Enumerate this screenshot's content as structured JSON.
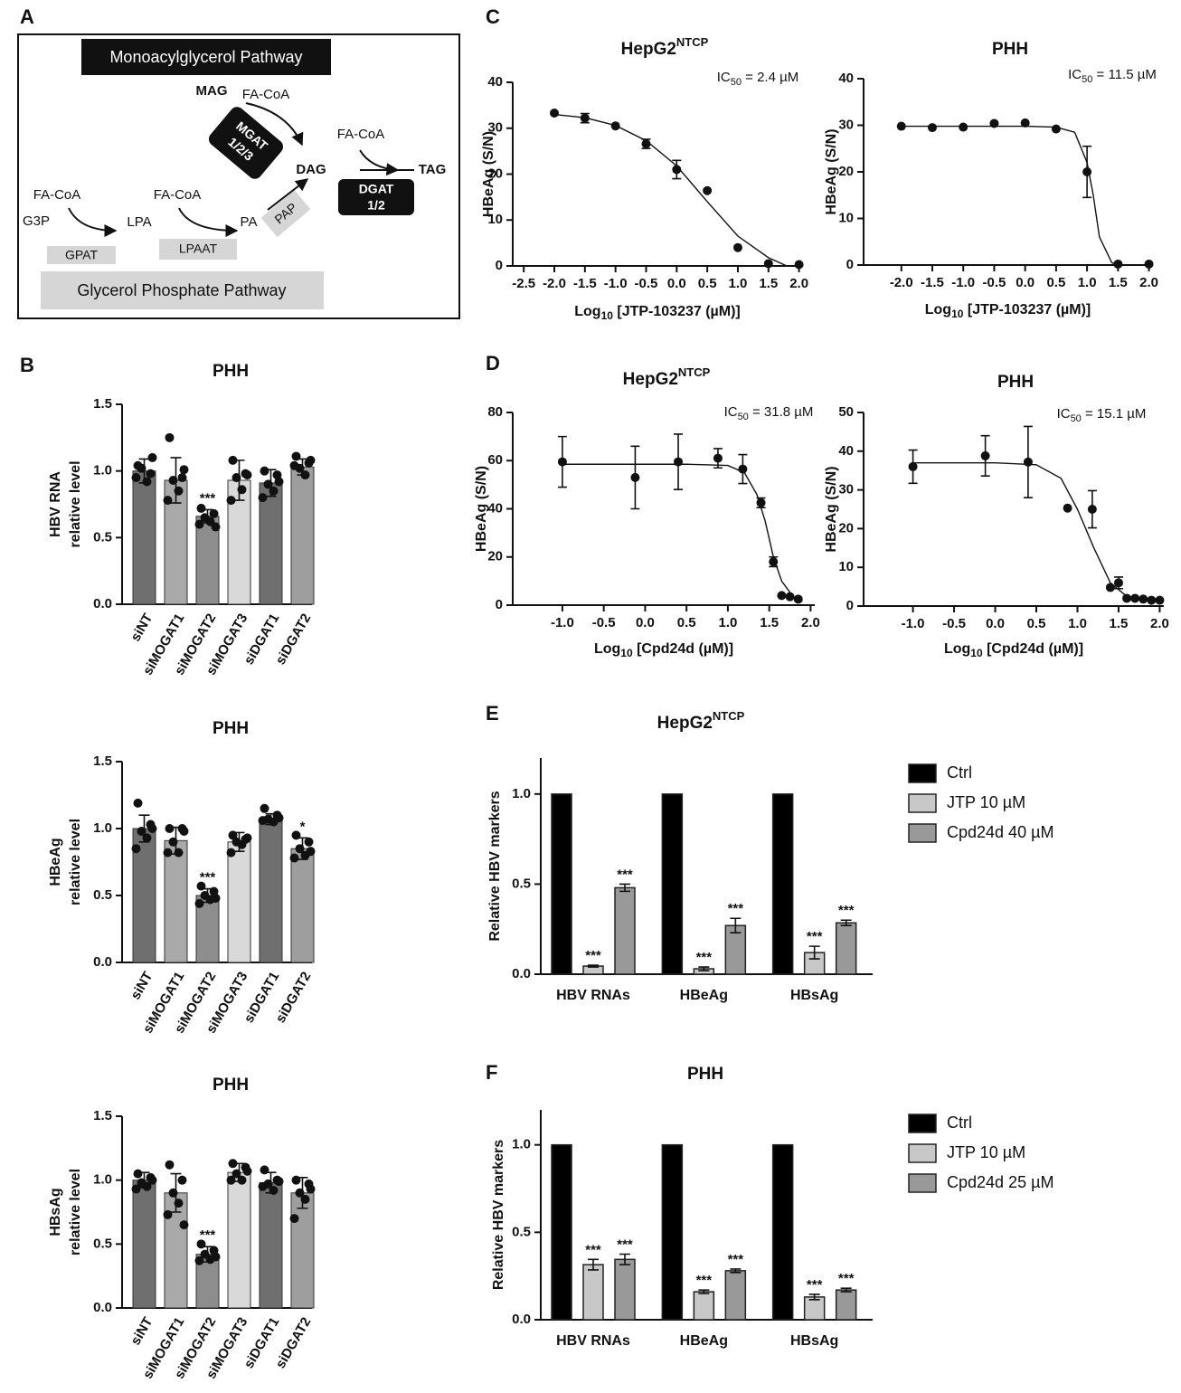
{
  "panel_labels": [
    "A",
    "B",
    "C",
    "D",
    "E",
    "F"
  ],
  "diagram": {
    "top_title": "Monoacylglycerol Pathway",
    "bottom_title": "Glycerol Phosphate Pathway",
    "mag": "MAG",
    "dag": "DAG",
    "tag": "TAG",
    "g3p": "G3P",
    "lpa": "LPA",
    "pa": "PA",
    "fa_coa": [
      "FA-CoA",
      "FA-CoA",
      "FA-CoA",
      "FA-CoA"
    ],
    "mgat": [
      "MGAT",
      "1/2/3"
    ],
    "dgat": [
      "DGAT",
      "1/2"
    ],
    "pap": "PAP",
    "gpat": "GPAT",
    "lpaat": "LPAAT"
  },
  "chart_data": [
    {
      "type": "bar",
      "title": "PHH",
      "ylabel": [
        "HBV RNA",
        "relative level"
      ],
      "categories": [
        "siNT",
        "siMOGAT1",
        "siMOGAT2",
        "siMOGAT3",
        "siDGAT1",
        "siDGAT2"
      ],
      "values": [
        1.0,
        0.93,
        0.66,
        0.93,
        0.91,
        1.03
      ],
      "errors": [
        0.09,
        0.17,
        0.05,
        0.15,
        0.1,
        0.06
      ],
      "points": [
        [
          1.04,
          0.98,
          1.02,
          0.92,
          0.95,
          1.1
        ],
        [
          1.25,
          0.95,
          0.93,
          0.85,
          0.78,
          1.01
        ],
        [
          0.72,
          0.68,
          0.65,
          0.62,
          0.6,
          0.58
        ],
        [
          1.08,
          0.98,
          0.95,
          0.86,
          0.78,
          0.97
        ],
        [
          1.0,
          0.97,
          0.9,
          0.85,
          0.8,
          0.92
        ],
        [
          1.11,
          1.06,
          1.02,
          0.97,
          1.04,
          1.08
        ]
      ],
      "significance": [
        null,
        null,
        "***",
        null,
        null,
        null
      ],
      "colors": [
        "#6f6f6f",
        "#a9a9a9",
        "#8d8d8d",
        "#d9d9d9",
        "#6f6f6f",
        "#9e9e9e"
      ],
      "ylim": [
        0,
        1.5
      ],
      "yticks": [
        {
          "value": 0,
          "label": "0.0"
        },
        0.5,
        {
          "value": 1,
          "label": "1.0"
        },
        1.5
      ]
    },
    {
      "type": "bar",
      "title": "PHH",
      "ylabel": [
        "HBeAg",
        "relative level"
      ],
      "categories": [
        "siNT",
        "siMOGAT1",
        "siMOGAT2",
        "siMOGAT3",
        "siDGAT1",
        "siDGAT2"
      ],
      "values": [
        1.0,
        0.91,
        0.5,
        0.9,
        1.07,
        0.85
      ],
      "errors": [
        0.1,
        0.1,
        0.05,
        0.07,
        0.04,
        0.08
      ],
      "points": [
        [
          1.19,
          1.03,
          0.98,
          0.93,
          0.85,
          1.0
        ],
        [
          1.0,
          1.0,
          0.9,
          0.82,
          0.82,
          0.98
        ],
        [
          0.57,
          0.53,
          0.5,
          0.47,
          0.44,
          0.48
        ],
        [
          0.95,
          0.92,
          0.9,
          0.88,
          0.82,
          0.93
        ],
        [
          1.15,
          1.1,
          1.07,
          1.05,
          1.06,
          1.08
        ],
        [
          0.95,
          0.9,
          0.85,
          0.8,
          0.78,
          0.83
        ]
      ],
      "significance": [
        null,
        null,
        "***",
        null,
        null,
        "*"
      ],
      "colors": [
        "#6f6f6f",
        "#a9a9a9",
        "#8d8d8d",
        "#d9d9d9",
        "#6f6f6f",
        "#9e9e9e"
      ],
      "ylim": [
        0,
        1.5
      ],
      "yticks": [
        {
          "value": 0,
          "label": "0.0"
        },
        0.5,
        {
          "value": 1,
          "label": "1.0"
        },
        1.5
      ]
    },
    {
      "type": "bar",
      "title": "PHH",
      "ylabel": [
        "HBsAg",
        "relative level"
      ],
      "categories": [
        "siNT",
        "siMOGAT1",
        "siMOGAT2",
        "siMOGAT3",
        "siDGAT1",
        "siDGAT2"
      ],
      "values": [
        1.0,
        0.9,
        0.42,
        1.06,
        0.98,
        0.9
      ],
      "errors": [
        0.06,
        0.15,
        0.06,
        0.07,
        0.08,
        0.12
      ],
      "points": [
        [
          1.05,
          1.02,
          0.98,
          0.95,
          0.93,
          1.0
        ],
        [
          1.12,
          1.0,
          0.9,
          0.82,
          0.73,
          0.65
        ],
        [
          0.5,
          0.45,
          0.42,
          0.38,
          0.37,
          0.4
        ],
        [
          1.13,
          1.1,
          1.05,
          1.0,
          1.0,
          1.07
        ],
        [
          1.08,
          1.0,
          0.97,
          0.92,
          0.95,
          0.99
        ],
        [
          1.0,
          0.97,
          0.9,
          0.85,
          0.7,
          0.93
        ]
      ],
      "significance": [
        null,
        null,
        "***",
        null,
        null,
        null
      ],
      "colors": [
        "#6f6f6f",
        "#a9a9a9",
        "#8d8d8d",
        "#d9d9d9",
        "#6f6f6f",
        "#9e9e9e"
      ],
      "ylim": [
        0,
        1.5
      ],
      "yticks": [
        {
          "value": 0,
          "label": "0.0"
        },
        0.5,
        {
          "value": 1,
          "label": "1.0"
        },
        1.5
      ]
    },
    {
      "type": "scatter",
      "title": "HepG2",
      "title_sup": "NTCP",
      "annotation": {
        "text": "IC",
        "sub": "50",
        "rest": " = 2.4 µM"
      },
      "xlabel": {
        "text": "Log",
        "sub": "10",
        "rest": " [JTP-103237 (µM)]"
      },
      "ylabel": "HBeAg (S/N)",
      "x": [
        -2,
        -1.5,
        -1,
        -0.5,
        0,
        0.5,
        1,
        1.5,
        2
      ],
      "y": [
        33.3,
        32.2,
        30.5,
        26.6,
        21,
        16.4,
        4,
        0.5,
        0.3
      ],
      "err": [
        null,
        1,
        null,
        1,
        2,
        null,
        null,
        null,
        null
      ],
      "fit_x": [
        -2,
        -1.5,
        -1,
        -0.5,
        0,
        0.5,
        1,
        1.5,
        1.8
      ],
      "fit_y": [
        33,
        32.3,
        30.6,
        27.3,
        21.8,
        14,
        6.5,
        1.8,
        0
      ],
      "xlim": [
        -2.68,
        2.05
      ],
      "xticks": [
        -2.5,
        {
          "value": -2,
          "label": "-2.0"
        },
        -1.5,
        {
          "value": -1,
          "label": "-1.0"
        },
        -0.5,
        {
          "value": 0,
          "label": "0.0"
        },
        0.5,
        {
          "value": 1,
          "label": "1.0"
        },
        1.5,
        {
          "value": 2,
          "label": "2.0"
        }
      ],
      "ylim": [
        0,
        40
      ],
      "yticks": [
        0,
        10,
        20,
        30,
        40
      ]
    },
    {
      "type": "scatter",
      "title": "PHH",
      "annotation": {
        "text": "IC",
        "sub": "50",
        "rest": " = 11.5 µM"
      },
      "xlabel": {
        "text": "Log",
        "sub": "10",
        "rest": " [JTP-103237 (µM)]"
      },
      "ylabel": "HBeAg (S/N)",
      "x": [
        -2,
        -1.5,
        -1,
        -0.5,
        0,
        0.5,
        1,
        1.5,
        2
      ],
      "y": [
        29.8,
        29.5,
        29.6,
        30.4,
        30.5,
        29.2,
        20,
        0.2,
        0.2
      ],
      "err": [
        null,
        null,
        null,
        null,
        null,
        null,
        5.5,
        null,
        null
      ],
      "fit_x": [
        -2,
        -1,
        0,
        0.5,
        0.8,
        1,
        1.1,
        1.2,
        1.4,
        1.5
      ],
      "fit_y": [
        29.8,
        29.8,
        29.8,
        29.6,
        28.5,
        22,
        15,
        6,
        0.5,
        0
      ],
      "xlim": [
        -2.61,
        2.05
      ],
      "xticks": [
        {
          "value": -2,
          "label": "-2.0"
        },
        -1.5,
        {
          "value": -1,
          "label": "-1.0"
        },
        -0.5,
        {
          "value": 0,
          "label": "0.0"
        },
        0.5,
        {
          "value": 1,
          "label": "1.0"
        },
        1.5,
        {
          "value": 2,
          "label": "2.0"
        }
      ],
      "ylim": [
        0,
        40
      ],
      "yticks": [
        0,
        10,
        20,
        30,
        40
      ]
    },
    {
      "type": "scatter",
      "title": "HepG2",
      "title_sup": "NTCP",
      "annotation": {
        "text": "IC",
        "sub": "50",
        "rest": " = 31.8 µM"
      },
      "xlabel": {
        "text": "Log",
        "sub": "10",
        "rest": " [Cpd24d (µM)]"
      },
      "ylabel": "HBeAg (S/N)",
      "x": [
        -1,
        -0.12,
        0.4,
        0.88,
        1.18,
        1.4,
        1.55,
        1.65,
        1.75,
        1.85
      ],
      "y": [
        59.5,
        53,
        59.5,
        61,
        56.5,
        42.5,
        18,
        4,
        3.5,
        2.5
      ],
      "err": [
        10.5,
        13,
        11.5,
        4,
        6,
        2,
        2,
        null,
        null,
        null
      ],
      "fit_x": [
        -1,
        0,
        0.5,
        1,
        1.2,
        1.35,
        1.45,
        1.55,
        1.65,
        1.8,
        1.9
      ],
      "fit_y": [
        58.5,
        58.5,
        58.5,
        58,
        55,
        46,
        35,
        20,
        10,
        3,
        1.5
      ],
      "xlim": [
        -1.6,
        2.05
      ],
      "xticks": [
        {
          "value": -1,
          "label": "-1.0"
        },
        -0.5,
        {
          "value": 0,
          "label": "0.0"
        },
        0.5,
        {
          "value": 1,
          "label": "1.0"
        },
        1.5,
        {
          "value": 2,
          "label": "2.0"
        }
      ],
      "ylim": [
        0,
        80
      ],
      "yticks": [
        0,
        20,
        40,
        60,
        80
      ]
    },
    {
      "type": "scatter",
      "title": "PHH",
      "annotation": {
        "text": "IC",
        "sub": "50",
        "rest": " = 15.1 µM"
      },
      "xlabel": {
        "text": "Log",
        "sub": "10",
        "rest": " [Cpd24d (µM)]"
      },
      "ylabel": "HBeAg (S/N)",
      "x": [
        -1,
        -0.12,
        0.4,
        0.88,
        1.18,
        1.4,
        1.5,
        1.6,
        1.7,
        1.8,
        1.9,
        2.0
      ],
      "y": [
        36,
        38.8,
        37.2,
        25.3,
        25,
        4.8,
        6,
        2,
        2,
        1.8,
        1.5,
        1.5
      ],
      "err": [
        4.3,
        5.2,
        9.2,
        null,
        4.8,
        null,
        1.5,
        null,
        null,
        null,
        null,
        null
      ],
      "fit_x": [
        -1,
        0,
        0.5,
        0.8,
        1,
        1.2,
        1.4,
        1.6,
        1.8,
        2
      ],
      "fit_y": [
        37,
        37,
        36.5,
        33,
        25,
        15,
        6,
        2.5,
        1.5,
        1.3
      ],
      "xlim": [
        -1.6,
        2.05
      ],
      "xticks": [
        {
          "value": -1,
          "label": "-1.0"
        },
        -0.5,
        {
          "value": 0,
          "label": "0.0"
        },
        0.5,
        {
          "value": 1,
          "label": "1.0"
        },
        1.5,
        {
          "value": 2,
          "label": "2.0"
        }
      ],
      "ylim": [
        0,
        50
      ],
      "yticks": [
        0,
        10,
        20,
        30,
        40,
        50
      ]
    },
    {
      "type": "grouped_bar",
      "title": "HepG2",
      "title_sup": "NTCP",
      "ylabel": "Relative HBV markers",
      "categories": [
        "HBV RNAs",
        "HBeAg",
        "HBsAg"
      ],
      "series": [
        {
          "name": "Ctrl",
          "color": "#000000",
          "values": [
            1,
            1,
            1
          ]
        },
        {
          "name": "JTP 10 µM",
          "color": "#c8c8c8",
          "values": [
            0.045,
            0.03,
            0.12
          ],
          "errors": [
            0.005,
            0.01,
            0.035
          ],
          "significance": [
            "***",
            "***",
            "***"
          ]
        },
        {
          "name": "Cpd24d 40 µM",
          "color": "#999999",
          "values": [
            0.48,
            0.27,
            0.285
          ],
          "errors": [
            0.02,
            0.04,
            0.015
          ],
          "significance": [
            "***",
            "***",
            "***"
          ]
        }
      ],
      "legend": "right",
      "ylim": [
        0,
        1.2
      ],
      "yticks": [
        {
          "value": 0,
          "label": "0.0"
        },
        0.5,
        {
          "value": 1,
          "label": "1.0"
        }
      ]
    },
    {
      "type": "grouped_bar",
      "title": "PHH",
      "ylabel": "Relative HBV markers",
      "categories": [
        "HBV RNAs",
        "HBeAg",
        "HBsAg"
      ],
      "series": [
        {
          "name": "Ctrl",
          "color": "#000000",
          "values": [
            1,
            1,
            1
          ]
        },
        {
          "name": "JTP 10 µM",
          "color": "#c8c8c8",
          "values": [
            0.315,
            0.16,
            0.13
          ],
          "errors": [
            0.03,
            0.01,
            0.015
          ],
          "significance": [
            "***",
            "***",
            "***"
          ]
        },
        {
          "name": "Cpd24d 25 µM",
          "color": "#999999",
          "values": [
            0.345,
            0.28,
            0.17
          ],
          "errors": [
            0.03,
            0.01,
            0.01
          ],
          "significance": [
            "***",
            "***",
            "***"
          ]
        }
      ],
      "legend": "right",
      "ylim": [
        0,
        1.2
      ],
      "yticks": [
        {
          "value": 0,
          "label": "0.0"
        },
        0.5,
        {
          "value": 1,
          "label": "1.0"
        }
      ]
    }
  ]
}
